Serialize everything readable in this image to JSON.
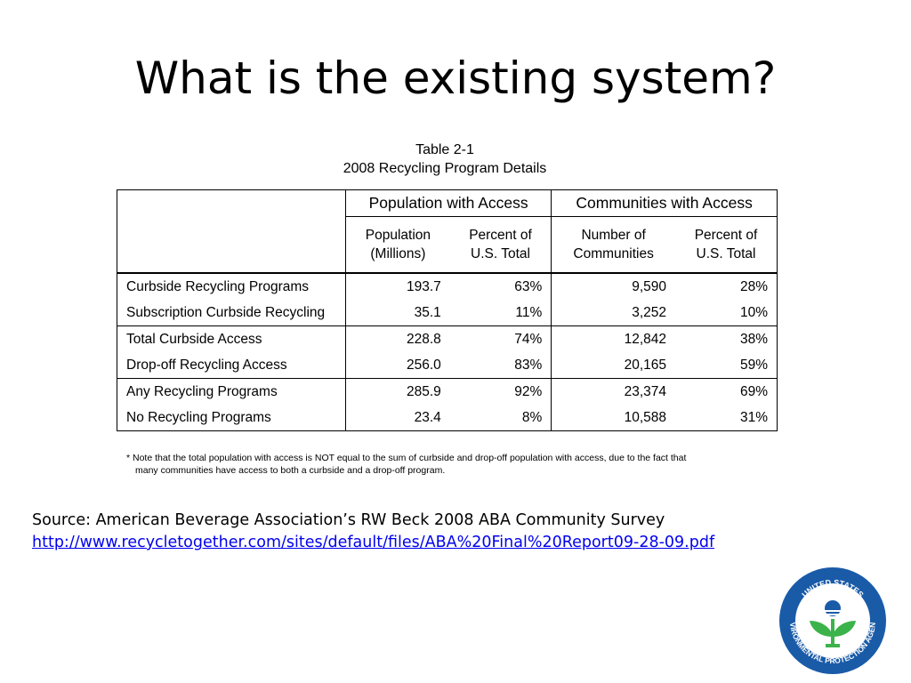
{
  "slide": {
    "title": "What is the existing system?"
  },
  "table": {
    "caption_line1": "Table 2-1",
    "caption_line2": "2008 Recycling Program Details",
    "group_headers": [
      "Population with Access",
      "Communities with Access"
    ],
    "column_headers": [
      {
        "line1": "Population",
        "line2": "(Millions)"
      },
      {
        "line1": "Percent of",
        "line2": "U.S. Total"
      },
      {
        "line1": "Number of",
        "line2": "Communities"
      },
      {
        "line1": "Percent of",
        "line2": "U.S. Total"
      }
    ],
    "rows": [
      {
        "label": "Curbside Recycling Programs",
        "values": [
          "193.7",
          "63%",
          "9,590",
          "28%"
        ]
      },
      {
        "label": "Subscription Curbside Recycling",
        "values": [
          "35.1",
          "11%",
          "3,252",
          "10%"
        ]
      },
      {
        "label": "Total Curbside Access",
        "values": [
          "228.8",
          "74%",
          "12,842",
          "38%"
        ]
      },
      {
        "label": "Drop-off Recycling Access",
        "values": [
          "256.0",
          "83%",
          "20,165",
          "59%"
        ]
      },
      {
        "label": "Any Recycling Programs",
        "values": [
          "285.9",
          "92%",
          "23,374",
          "69%"
        ]
      },
      {
        "label": "No Recycling Programs",
        "values": [
          "23.4",
          "8%",
          "10,588",
          "31%"
        ]
      }
    ],
    "footnote_line1": "* Note that the total population with access is NOT equal to the sum of curbside and drop-off population with access, due to the fact that",
    "footnote_line2": "many communities have access to both a curbside and a drop-off program."
  },
  "source": {
    "text": "Source: American Beverage Association’s RW Beck 2008 ABA Community Survey",
    "link_text": "http://www.recycletogether.com/sites/default/files/ABA%20Final%20Report09-28-09.pdf"
  },
  "logo": {
    "text_top": "UNITED STATES",
    "text_bottom": "ENVIRONMENTAL PROTECTION AGENCY",
    "colors": {
      "ring": "#1a5ba8",
      "plant": "#3cb34a",
      "water": "#1a5ba8"
    }
  }
}
